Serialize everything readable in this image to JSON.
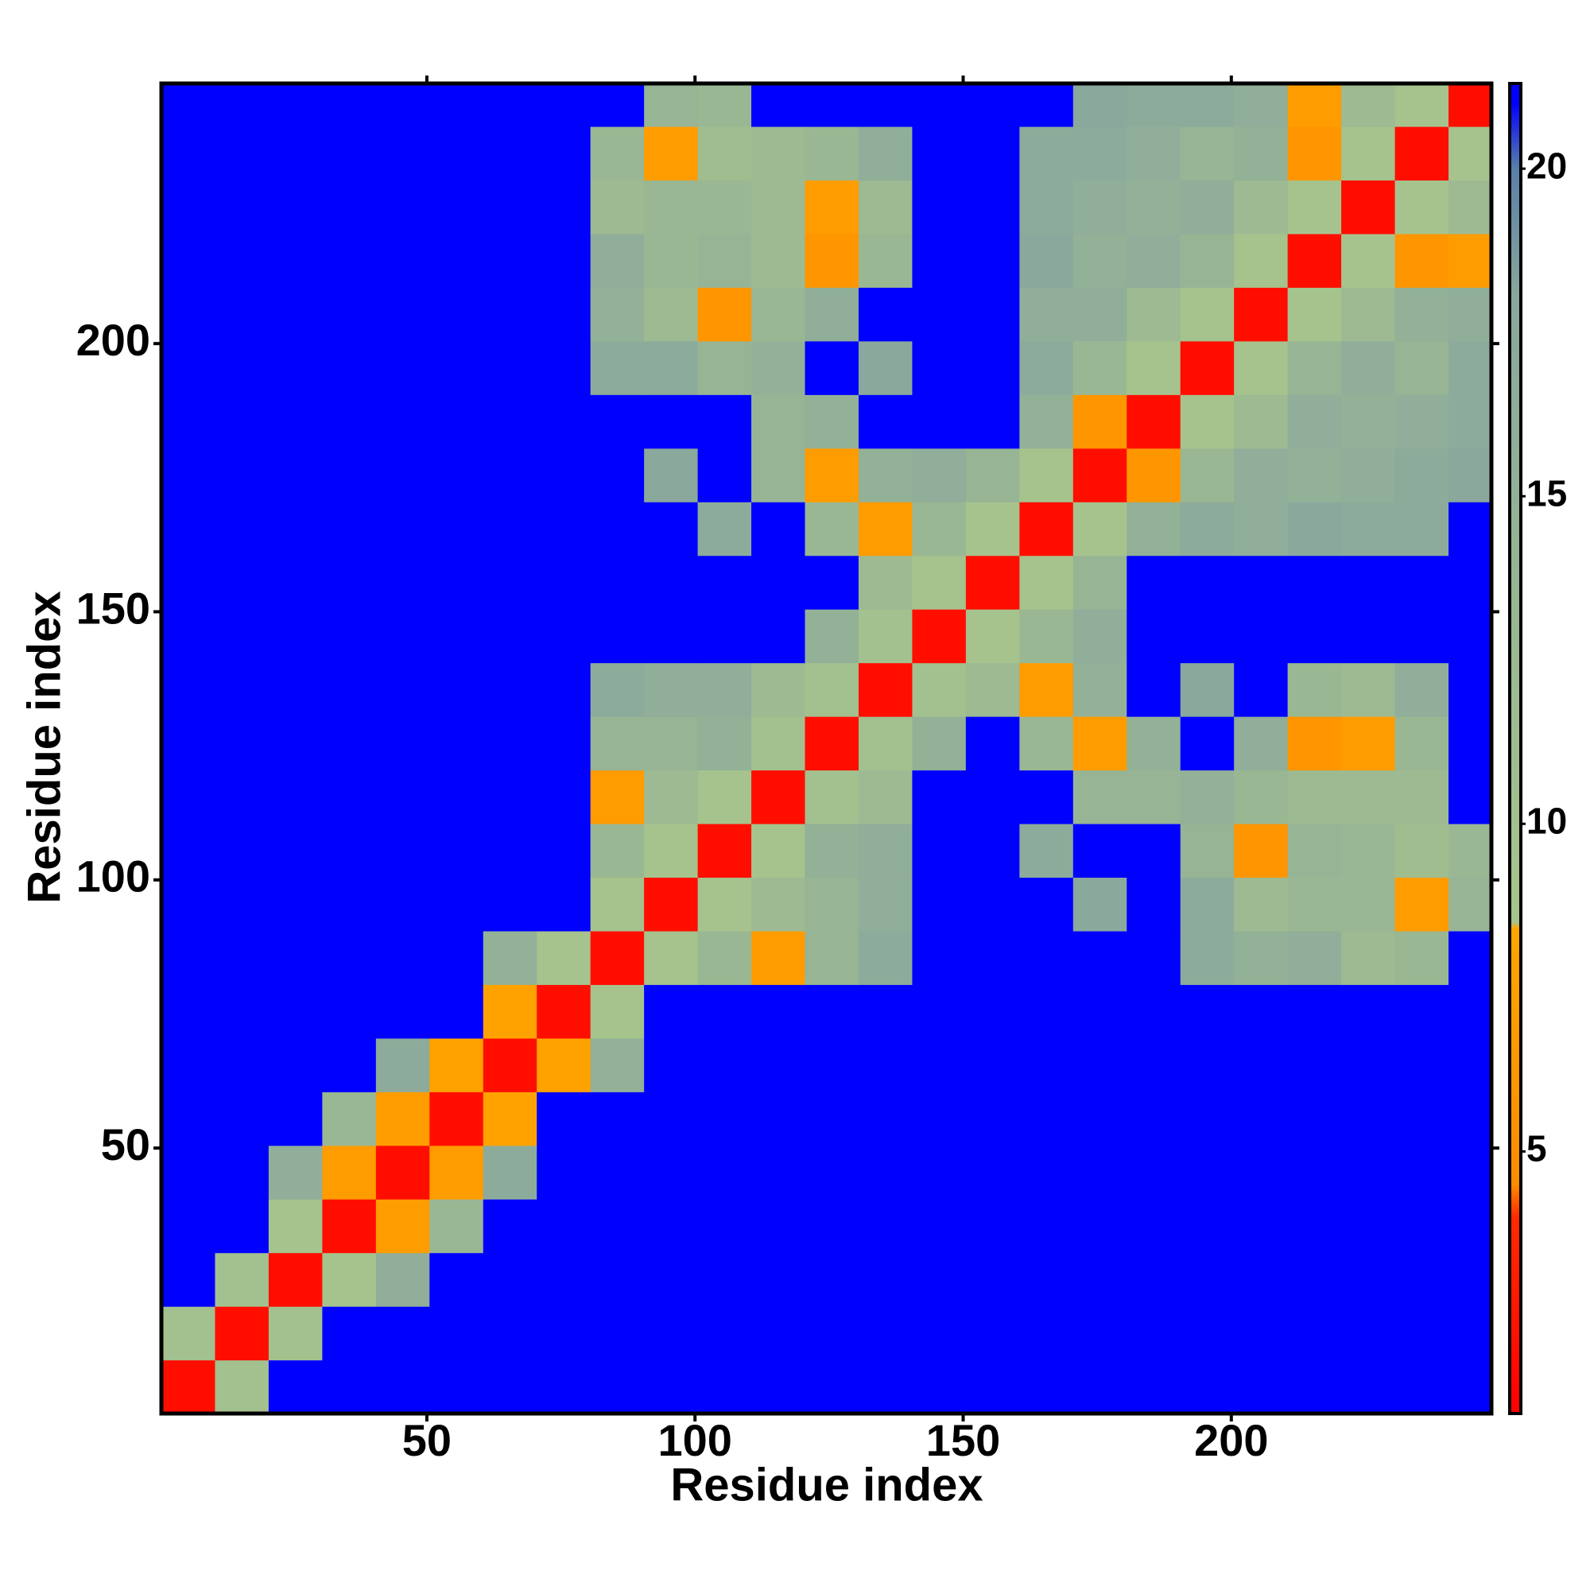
{
  "chart_data": {
    "type": "heatmap",
    "xlabel": "Residue index",
    "ylabel": "Residue index",
    "x": [
      5.5,
      15.5,
      25.5,
      35.5,
      45.5,
      55.5,
      65.5,
      75.5,
      85.5,
      95.5,
      105.5,
      115.5,
      125.5,
      135.5,
      145.5,
      155.5,
      165.5,
      175.5,
      185.5,
      195.5,
      205.5,
      215.5,
      225.5,
      235.5,
      245.5
    ],
    "y": [
      5.5,
      15.5,
      25.5,
      35.5,
      45.5,
      55.5,
      65.5,
      75.5,
      85.5,
      95.5,
      105.5,
      115.5,
      125.5,
      135.5,
      145.5,
      155.5,
      165.5,
      175.5,
      185.5,
      195.5,
      205.5,
      215.5,
      225.5,
      235.5,
      245.5
    ],
    "z": [
      [
        2,
        10,
        21,
        21,
        21,
        21,
        21,
        21,
        21,
        21,
        21,
        21,
        21,
        21,
        21,
        21,
        21,
        21,
        21,
        21,
        21,
        21,
        21,
        21,
        21
      ],
      [
        10,
        2,
        10,
        21,
        21,
        21,
        21,
        21,
        21,
        21,
        21,
        21,
        21,
        21,
        21,
        21,
        21,
        21,
        21,
        21,
        21,
        21,
        21,
        21,
        21
      ],
      [
        21,
        10,
        2,
        9,
        16,
        21,
        21,
        21,
        21,
        21,
        21,
        21,
        21,
        21,
        21,
        21,
        21,
        21,
        21,
        21,
        21,
        21,
        21,
        21,
        21
      ],
      [
        21,
        21,
        9,
        2,
        7,
        13,
        21,
        21,
        21,
        21,
        21,
        21,
        21,
        21,
        21,
        21,
        21,
        21,
        21,
        21,
        21,
        21,
        21,
        21,
        21
      ],
      [
        21,
        21,
        16,
        7,
        2,
        7,
        17,
        21,
        21,
        21,
        21,
        21,
        21,
        21,
        21,
        21,
        21,
        21,
        21,
        21,
        21,
        21,
        21,
        21,
        21
      ],
      [
        21,
        21,
        21,
        13,
        7,
        2,
        8,
        21,
        21,
        21,
        21,
        21,
        21,
        21,
        21,
        21,
        21,
        21,
        21,
        21,
        21,
        21,
        21,
        21,
        21
      ],
      [
        21,
        21,
        21,
        21,
        17,
        8,
        2,
        8,
        15,
        21,
        21,
        21,
        21,
        21,
        21,
        21,
        21,
        21,
        21,
        21,
        21,
        21,
        21,
        21,
        21
      ],
      [
        21,
        21,
        21,
        21,
        21,
        21,
        8,
        2,
        9,
        21,
        21,
        21,
        21,
        21,
        21,
        21,
        21,
        21,
        21,
        21,
        21,
        21,
        21,
        21,
        21
      ],
      [
        21,
        21,
        21,
        21,
        21,
        21,
        15,
        9,
        2,
        9,
        13,
        7,
        14,
        17,
        21,
        21,
        21,
        21,
        21,
        17,
        15,
        16,
        12,
        13,
        21
      ],
      [
        21,
        21,
        21,
        21,
        21,
        21,
        21,
        21,
        9,
        2,
        9,
        12,
        14,
        16,
        21,
        21,
        21,
        18,
        21,
        17,
        12,
        13,
        13,
        7,
        14
      ],
      [
        21,
        21,
        21,
        21,
        21,
        21,
        21,
        21,
        13,
        9,
        2,
        9,
        15,
        16,
        21,
        21,
        17,
        21,
        21,
        14,
        6,
        14,
        13,
        11,
        13
      ],
      [
        21,
        21,
        21,
        21,
        21,
        21,
        21,
        21,
        7,
        12,
        9,
        2,
        10,
        12,
        21,
        21,
        21,
        14,
        14,
        15,
        13,
        12,
        12,
        12,
        21
      ],
      [
        21,
        21,
        21,
        21,
        21,
        21,
        21,
        21,
        14,
        14,
        15,
        10,
        2,
        10,
        15,
        21,
        13,
        7,
        15,
        21,
        16,
        6,
        7,
        13,
        21
      ],
      [
        21,
        21,
        21,
        21,
        21,
        21,
        21,
        21,
        17,
        16,
        16,
        12,
        10,
        2,
        10,
        12,
        7,
        15,
        21,
        18,
        21,
        13,
        12,
        16,
        21
      ],
      [
        21,
        21,
        21,
        21,
        21,
        21,
        21,
        21,
        21,
        21,
        21,
        21,
        15,
        10,
        2,
        9,
        13,
        16,
        21,
        21,
        21,
        21,
        21,
        21,
        21
      ],
      [
        21,
        21,
        21,
        21,
        21,
        21,
        21,
        21,
        21,
        21,
        21,
        21,
        21,
        12,
        9,
        2,
        9,
        14,
        21,
        21,
        21,
        21,
        21,
        21,
        21
      ],
      [
        21,
        21,
        21,
        21,
        21,
        21,
        21,
        21,
        21,
        21,
        17,
        21,
        13,
        7,
        13,
        9,
        2,
        9,
        15,
        17,
        16,
        18,
        17,
        17,
        21
      ],
      [
        21,
        21,
        21,
        21,
        21,
        21,
        21,
        21,
        21,
        18,
        21,
        14,
        7,
        15,
        16,
        14,
        9,
        2,
        6,
        13,
        16,
        15,
        16,
        17,
        18
      ],
      [
        21,
        21,
        21,
        21,
        21,
        21,
        21,
        21,
        21,
        21,
        21,
        14,
        15,
        21,
        21,
        21,
        15,
        6,
        2,
        9,
        12,
        16,
        15,
        16,
        17
      ],
      [
        21,
        21,
        21,
        21,
        21,
        21,
        21,
        21,
        17,
        17,
        14,
        15,
        21,
        18,
        21,
        21,
        17,
        13,
        9,
        2,
        9,
        14,
        16,
        14,
        17
      ],
      [
        21,
        21,
        21,
        21,
        21,
        21,
        21,
        21,
        15,
        12,
        6,
        13,
        16,
        21,
        21,
        21,
        16,
        16,
        12,
        9,
        2,
        9,
        12,
        15,
        16
      ],
      [
        21,
        21,
        21,
        21,
        21,
        21,
        21,
        21,
        16,
        13,
        14,
        12,
        6,
        13,
        21,
        21,
        18,
        15,
        16,
        14,
        9,
        2,
        9,
        6,
        7
      ],
      [
        21,
        21,
        21,
        21,
        21,
        21,
        21,
        21,
        12,
        13,
        13,
        12,
        7,
        12,
        21,
        21,
        17,
        16,
        15,
        16,
        12,
        9,
        2,
        9,
        12
      ],
      [
        21,
        21,
        21,
        21,
        21,
        21,
        21,
        21,
        13,
        7,
        11,
        12,
        13,
        16,
        21,
        21,
        17,
        17,
        16,
        14,
        15,
        6,
        9,
        2,
        9
      ],
      [
        21,
        21,
        21,
        21,
        21,
        21,
        21,
        21,
        21,
        14,
        13,
        21,
        21,
        21,
        21,
        21,
        21,
        18,
        17,
        17,
        16,
        7,
        12,
        9,
        2
      ]
    ],
    "xlim": [
      0.5,
      248.5
    ],
    "ylim": [
      0.5,
      248.5
    ],
    "xticks": [
      50,
      100,
      150,
      200
    ],
    "yticks": [
      50,
      100,
      150,
      200
    ],
    "colorbar": {
      "zlim": [
        1,
        21.3
      ],
      "ticks": [
        5,
        10,
        15,
        20
      ],
      "colorscale": [
        [
          1,
          "#ff0000"
        ],
        [
          4,
          "#ff2a00"
        ],
        [
          4.5,
          "#ff8c00"
        ],
        [
          8.4,
          "#ffa500"
        ],
        [
          8.5,
          "#a8c48c"
        ],
        [
          18,
          "#8aa89c"
        ],
        [
          20,
          "#5a7fa8"
        ],
        [
          21,
          "#0000ff"
        ]
      ]
    }
  }
}
